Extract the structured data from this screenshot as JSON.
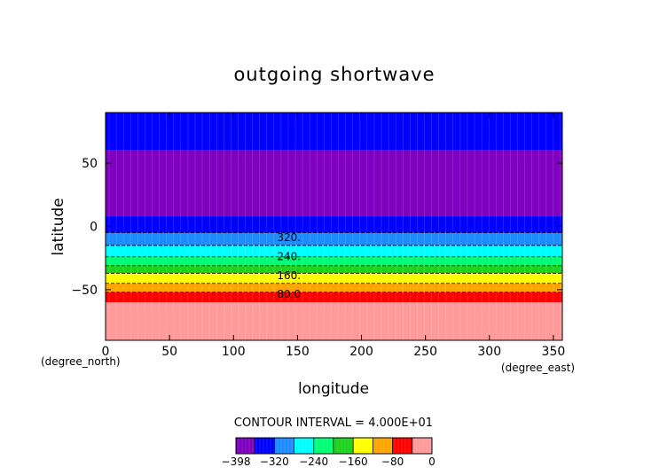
{
  "chart_data": {
    "type": "heatmap",
    "title": "outgoing shortwave",
    "xlabel": "longitude",
    "ylabel": "latitude",
    "x_unit_label": "(degree_east)",
    "y_unit_label": "(degree_north)",
    "xlim": [
      0,
      357
    ],
    "ylim": [
      -90,
      90
    ],
    "x_ticks": [
      0,
      50,
      100,
      150,
      200,
      250,
      300,
      350
    ],
    "y_ticks": [
      -50,
      0,
      50
    ],
    "x_tick_labels": [
      "0",
      "50",
      "100",
      "150",
      "200",
      "250",
      "300",
      "350"
    ],
    "y_tick_labels": [
      "−50",
      "0",
      "50"
    ],
    "contour_interval_text": "CONTOUR INTERVAL = 4.000E+01",
    "colorbar": {
      "min": -398,
      "max": 0,
      "boundaries": [
        -398,
        -360,
        -320,
        -280,
        -240,
        -200,
        -160,
        -120,
        -80,
        -40,
        0
      ],
      "tick_values": [
        -398,
        -320,
        -240,
        -160,
        -80,
        0
      ],
      "tick_labels": [
        "−398",
        "−320",
        "−240",
        "−160",
        "−80",
        "0"
      ],
      "colors": [
        "#7f00bf",
        "#0000ff",
        "#1e8cff",
        "#00ffff",
        "#00ff77",
        "#1fd21f",
        "#ffff00",
        "#ffa500",
        "#ff0000",
        "#ff9a9a"
      ]
    },
    "bands": [
      {
        "lat_from": 60,
        "lat_to": 90,
        "value": -380,
        "color": "#0000ff"
      },
      {
        "lat_from": 8,
        "lat_to": 60,
        "value": -398,
        "color": "#7f00bf"
      },
      {
        "lat_from": -5,
        "lat_to": 8,
        "value": -360,
        "color": "#0000ff"
      },
      {
        "lat_from": -15,
        "lat_to": -5,
        "value": -300,
        "color": "#1e8cff"
      },
      {
        "lat_from": -24,
        "lat_to": -15,
        "value": -260,
        "color": "#00ffff"
      },
      {
        "lat_from": -31,
        "lat_to": -24,
        "value": -220,
        "color": "#00ff77"
      },
      {
        "lat_from": -37,
        "lat_to": -31,
        "value": -180,
        "color": "#1fd21f"
      },
      {
        "lat_from": -45,
        "lat_to": -37,
        "value": -140,
        "color": "#ffff00"
      },
      {
        "lat_from": -52,
        "lat_to": -45,
        "value": -100,
        "color": "#ffa500"
      },
      {
        "lat_from": -60,
        "lat_to": -52,
        "value": -60,
        "color": "#ff0000"
      },
      {
        "lat_from": -90,
        "lat_to": -60,
        "value": -20,
        "color": "#ff9a9a"
      }
    ],
    "contour_lines": [
      -5,
      -15,
      -24,
      -31,
      -37,
      -45,
      -52
    ],
    "contour_labels": [
      {
        "text": "320.",
        "lat": -8,
        "lon": 135
      },
      {
        "text": "240.",
        "lat": -23,
        "lon": 135
      },
      {
        "text": "160.",
        "lat": -38,
        "lon": 135
      },
      {
        "text": "80.0",
        "lat": -53,
        "lon": 135
      }
    ]
  }
}
